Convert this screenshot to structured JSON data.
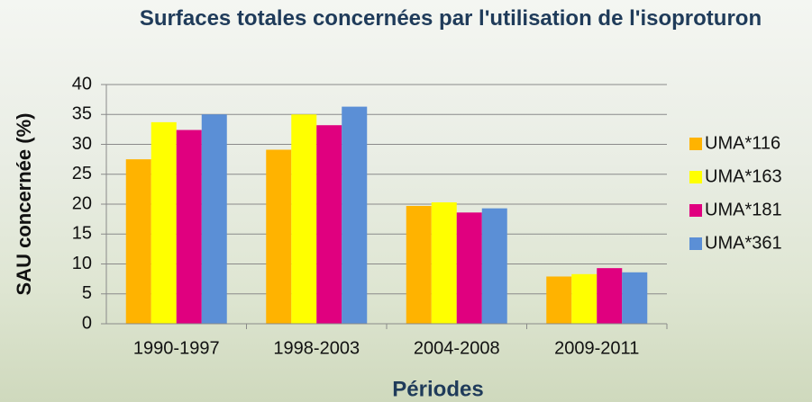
{
  "chart_data": {
    "type": "bar",
    "title": "Surfaces totales concernées par l'utilisation de l'isoproturon",
    "x_label": "Périodes",
    "y_label": "SAU concernée (%)",
    "categories": [
      "1990-1997",
      "1998-2003",
      "2004-2008",
      "2009-2011"
    ],
    "series": [
      {
        "name": "UMA*116",
        "color": "#ffb300",
        "values": [
          27.5,
          29.1,
          19.7,
          7.9
        ]
      },
      {
        "name": "UMA*163",
        "color": "#ffff00",
        "values": [
          33.7,
          35,
          20.3,
          8.3
        ]
      },
      {
        "name": "UMA*181",
        "color": "#e0007f",
        "values": [
          32.4,
          33.2,
          18.6,
          9.3
        ]
      },
      {
        "name": "UMA*361",
        "color": "#5b8fd6",
        "values": [
          35,
          36.3,
          19.3,
          8.6
        ]
      }
    ],
    "ylim": [
      0,
      40
    ],
    "yticks": [
      0,
      5,
      10,
      15,
      20,
      25,
      30,
      35,
      40
    ],
    "grid": true,
    "legend": "right"
  }
}
